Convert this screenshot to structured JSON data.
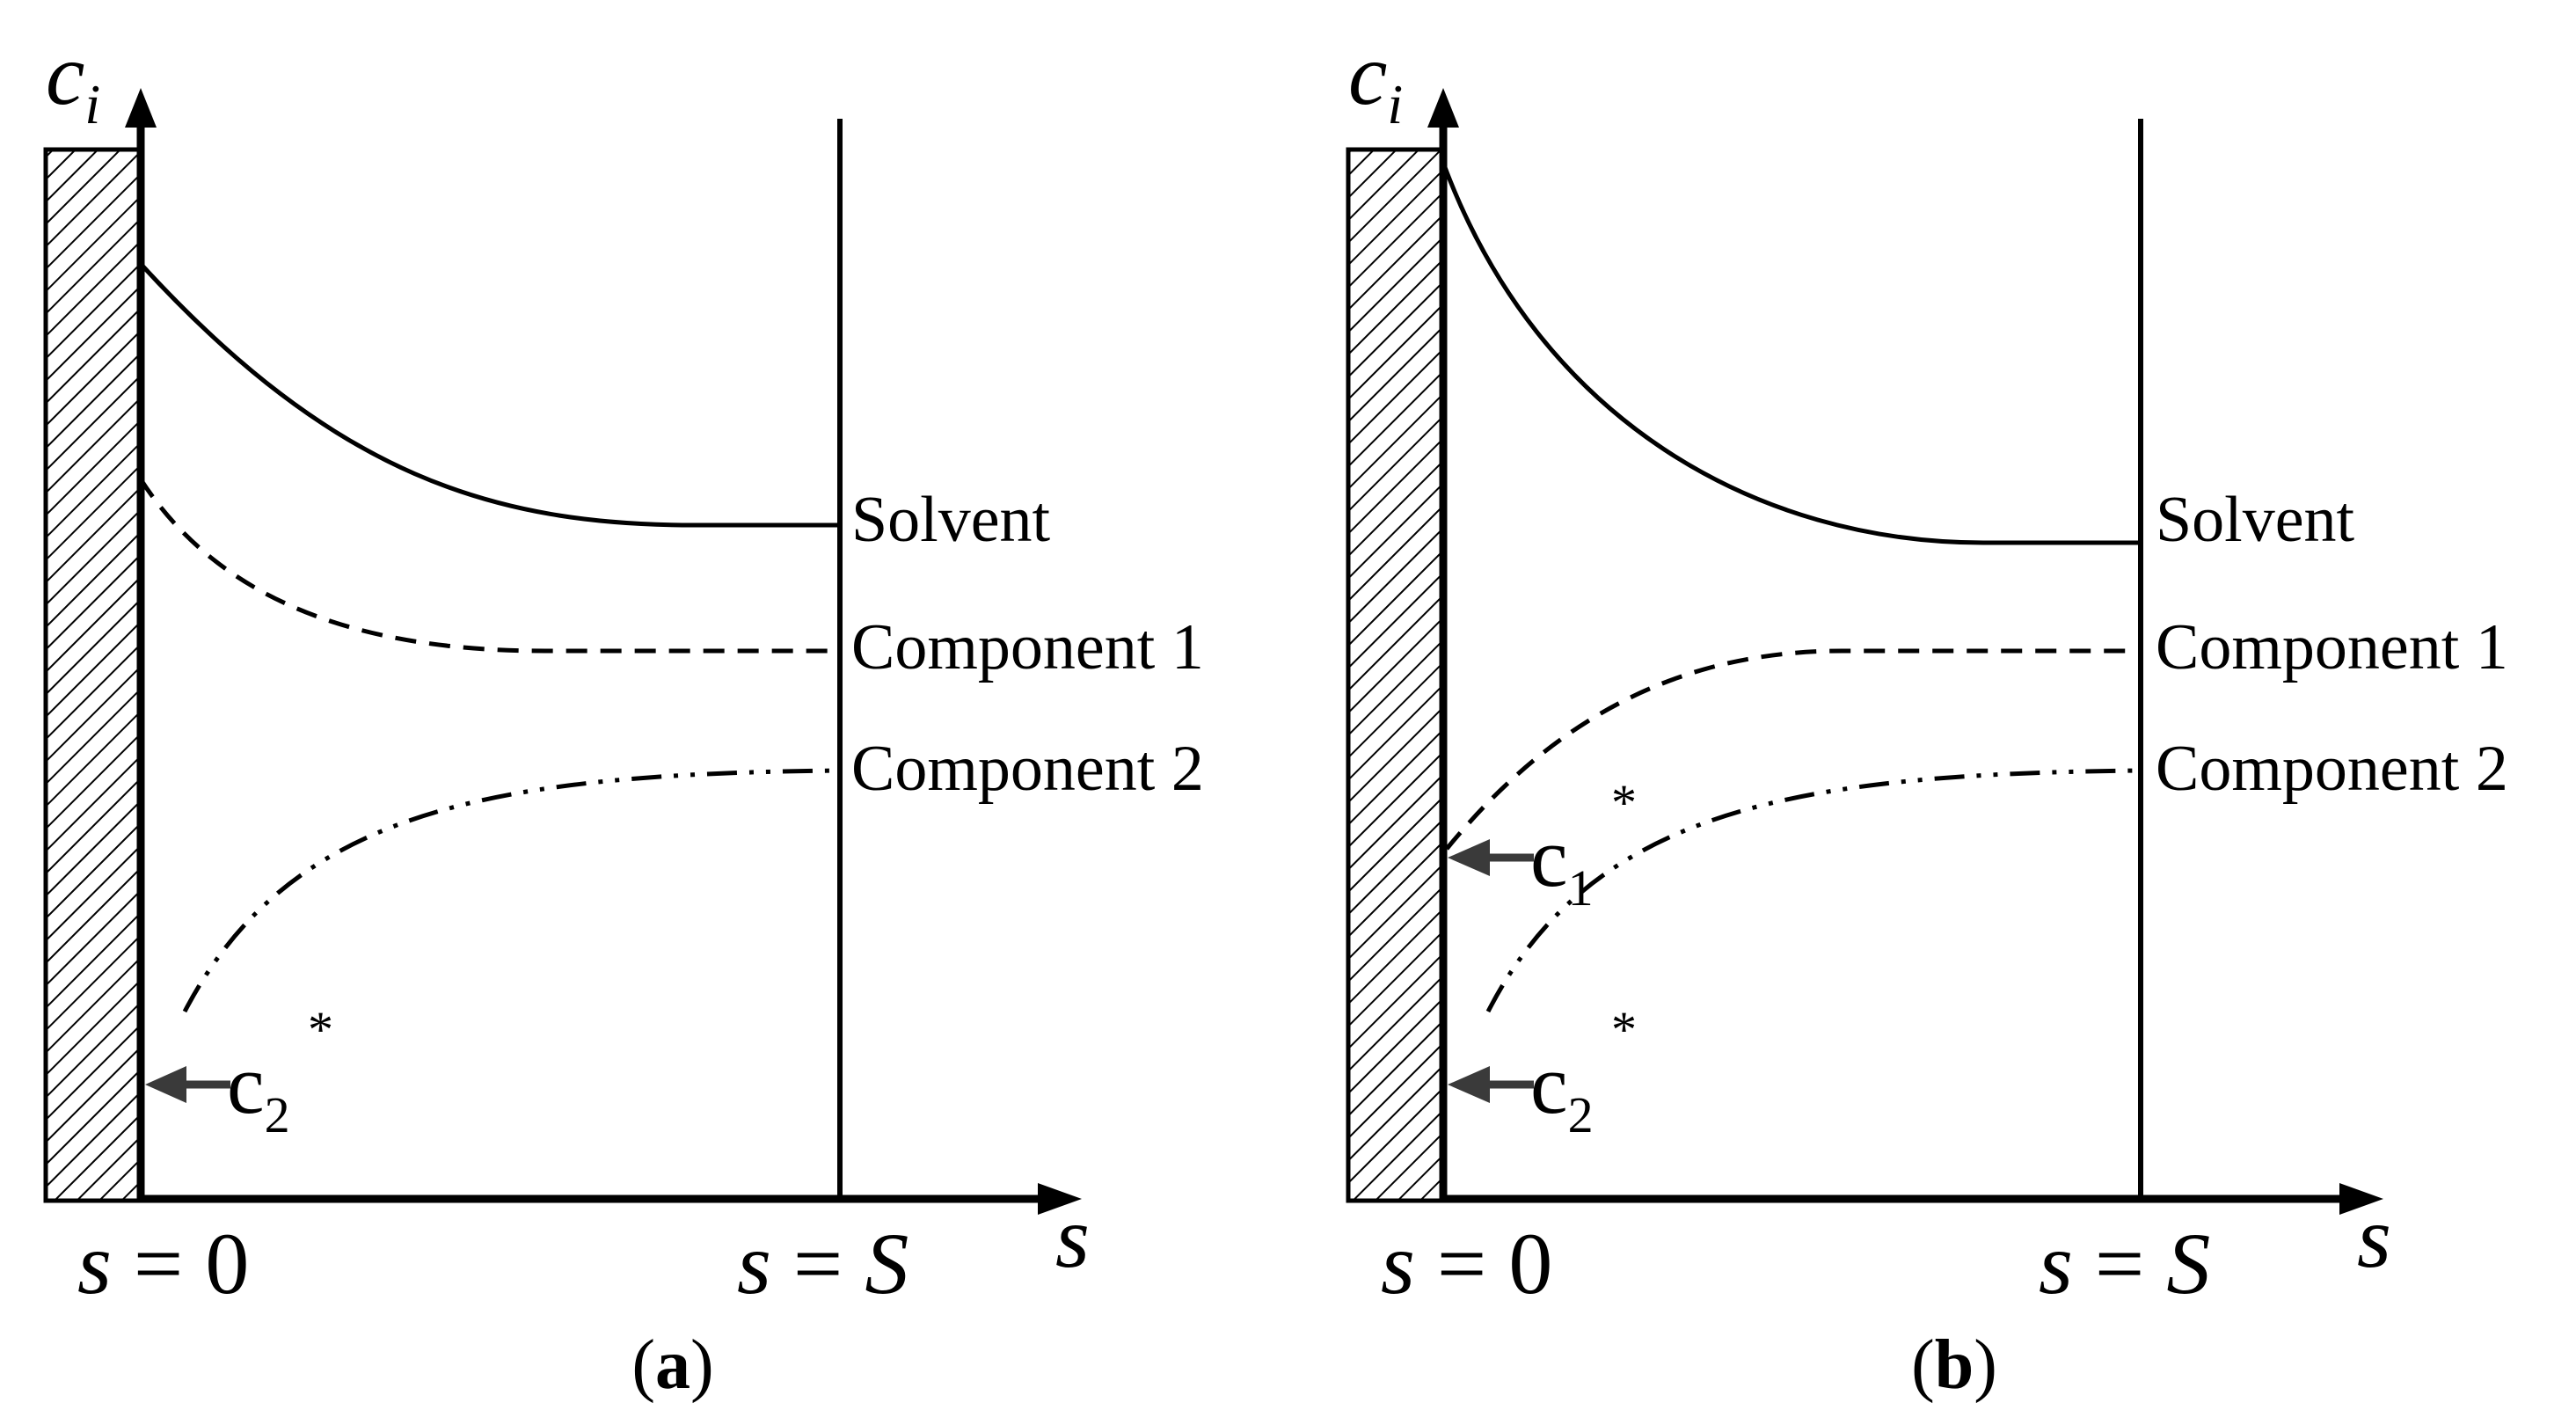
{
  "panels": [
    {
      "id": "a",
      "label": {
        "open": "(",
        "letter": "a",
        "close": ")"
      },
      "y_axis": {
        "var": "c",
        "sub": "i"
      },
      "x_axis": {
        "var": "s"
      },
      "left_boundary": {
        "lhs": "s",
        "eq": " = ",
        "rhs": "0"
      },
      "right_boundary": {
        "lhs": "s",
        "eq": " = ",
        "rhs": "S"
      },
      "curves": [
        {
          "name": "Solvent",
          "style": "solid"
        },
        {
          "name": "Component 1",
          "style": "dashed"
        },
        {
          "name": "Component 2",
          "style": "dash-dot-dot"
        }
      ],
      "markers": [
        {
          "base": "c",
          "sub": "2",
          "sup": "*"
        }
      ]
    },
    {
      "id": "b",
      "label": {
        "open": "(",
        "letter": "b",
        "close": ")"
      },
      "y_axis": {
        "var": "c",
        "sub": "i"
      },
      "x_axis": {
        "var": "s"
      },
      "left_boundary": {
        "lhs": "s",
        "eq": " = ",
        "rhs": "0"
      },
      "right_boundary": {
        "lhs": "s",
        "eq": " = ",
        "rhs": "S"
      },
      "curves": [
        {
          "name": "Solvent",
          "style": "solid"
        },
        {
          "name": "Component 1",
          "style": "dashed"
        },
        {
          "name": "Component 2",
          "style": "dash-dot-dot"
        }
      ],
      "markers": [
        {
          "base": "c",
          "sub": "1",
          "sup": "*"
        },
        {
          "base": "c",
          "sub": "2",
          "sup": "*"
        }
      ]
    }
  ]
}
